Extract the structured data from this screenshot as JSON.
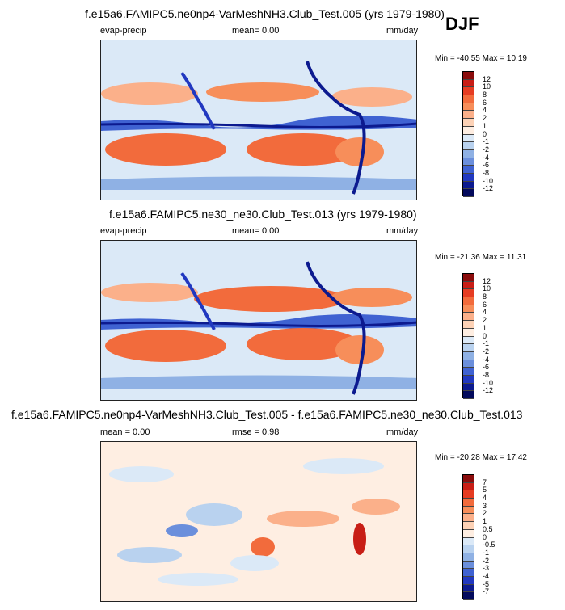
{
  "season": "DJF",
  "chart_data": [
    {
      "type": "heatmap",
      "title": "f.e15a6.FAMIPC5.ne0np4-VarMeshNH3.Club_Test.005 (yrs 1979-1980)",
      "left_label": "evap-precip",
      "mid_label": "mean=  0.00",
      "right_label": "mm/day",
      "stats": "Min = -40.55 Max =  10.19",
      "colorbar_levels": [
        "12",
        "10",
        "8",
        "6",
        "4",
        "2",
        "1",
        "0",
        "-1",
        "-2",
        "-4",
        "-6",
        "-8",
        "-10",
        "-12"
      ],
      "colorbar_colors": [
        "#8a0c0c",
        "#c81e16",
        "#e63c22",
        "#f26b3c",
        "#f78e5a",
        "#fbb08a",
        "#fdd2b6",
        "#feeee2",
        "#dbe9f7",
        "#b9d2ef",
        "#8fb1e4",
        "#6b8fdc",
        "#3f62d2",
        "#2138c0",
        "#0c1a8f",
        "#030a5c"
      ]
    },
    {
      "type": "heatmap",
      "title": "f.e15a6.FAMIPC5.ne30_ne30.Club_Test.013 (yrs 1979-1980)",
      "left_label": "evap-precip",
      "mid_label": "mean=  0.00",
      "right_label": "mm/day",
      "stats": "Min = -21.36 Max =  11.31",
      "colorbar_levels": [
        "12",
        "10",
        "8",
        "6",
        "4",
        "2",
        "1",
        "0",
        "-1",
        "-2",
        "-4",
        "-6",
        "-8",
        "-10",
        "-12"
      ],
      "colorbar_colors": [
        "#8a0c0c",
        "#c81e16",
        "#e63c22",
        "#f26b3c",
        "#f78e5a",
        "#fbb08a",
        "#fdd2b6",
        "#feeee2",
        "#dbe9f7",
        "#b9d2ef",
        "#8fb1e4",
        "#6b8fdc",
        "#3f62d2",
        "#2138c0",
        "#0c1a8f",
        "#030a5c"
      ]
    },
    {
      "type": "heatmap",
      "title": "f.e15a6.FAMIPC5.ne0np4-VarMeshNH3.Club_Test.005 - f.e15a6.FAMIPC5.ne30_ne30.Club_Test.013",
      "left_label": "mean =  0.00",
      "mid_label": "rmse =  0.98",
      "right_label": "mm/day",
      "stats": "Min = -20.28 Max =  17.42",
      "colorbar_levels": [
        "7",
        "5",
        "4",
        "3",
        "2",
        "1",
        "0.5",
        "0",
        "-0.5",
        "-1",
        "-2",
        "-3",
        "-4",
        "-5",
        "-7"
      ],
      "colorbar_colors": [
        "#8a0c0c",
        "#c81e16",
        "#e63c22",
        "#f26b3c",
        "#f78e5a",
        "#fbb08a",
        "#fdd2b6",
        "#feeee2",
        "#dbe9f7",
        "#b9d2ef",
        "#8fb1e4",
        "#6b8fdc",
        "#3f62d2",
        "#2138c0",
        "#0c1a8f",
        "#030a5c"
      ]
    }
  ]
}
